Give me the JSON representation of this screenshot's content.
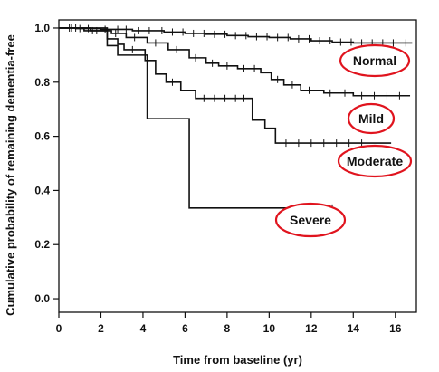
{
  "chart_data": {
    "type": "line",
    "title": "",
    "xlabel": "Time from baseline (yr)",
    "ylabel": "Cumulative probability of remaining dementia-free",
    "xlim": [
      0,
      17
    ],
    "ylim": [
      -0.05,
      1.03
    ],
    "xticks": [
      0,
      2,
      4,
      6,
      8,
      10,
      12,
      14,
      16
    ],
    "yticks": [
      0.0,
      0.2,
      0.4,
      0.6,
      0.8,
      1.0
    ],
    "ytick_labels": [
      "0.0",
      "0.2",
      "0.4",
      "0.6",
      "0.8",
      "1.0"
    ],
    "grid": false,
    "legend": "none",
    "series": [
      {
        "name": "Normal",
        "step_points": [
          [
            0,
            1.0
          ],
          [
            0.8,
            0.998
          ],
          [
            2,
            0.995
          ],
          [
            3.5,
            0.99
          ],
          [
            5,
            0.985
          ],
          [
            6,
            0.98
          ],
          [
            7,
            0.977
          ],
          [
            8,
            0.972
          ],
          [
            9,
            0.968
          ],
          [
            10,
            0.965
          ],
          [
            11,
            0.96
          ],
          [
            12,
            0.953
          ],
          [
            13,
            0.948
          ],
          [
            14,
            0.945
          ],
          [
            16.8,
            0.945
          ]
        ],
        "censor_x": [
          0.5,
          1,
          1.4,
          2.2,
          2.8,
          3.2,
          3.8,
          4.3,
          4.9,
          5.4,
          5.9,
          6.4,
          6.9,
          7.4,
          7.9,
          8.4,
          8.9,
          9.4,
          9.9,
          10.4,
          10.9,
          11.4,
          11.9,
          12.4,
          12.9,
          13.4,
          13.9,
          14.4,
          14.9,
          15.4,
          15.9,
          16.5
        ]
      },
      {
        "name": "Mild",
        "step_points": [
          [
            0,
            1.0
          ],
          [
            1.5,
            0.99
          ],
          [
            2.5,
            0.98
          ],
          [
            3.2,
            0.965
          ],
          [
            4.2,
            0.945
          ],
          [
            5.2,
            0.92
          ],
          [
            6.2,
            0.89
          ],
          [
            7,
            0.87
          ],
          [
            7.6,
            0.86
          ],
          [
            8.5,
            0.85
          ],
          [
            9.6,
            0.835
          ],
          [
            10.1,
            0.81
          ],
          [
            10.7,
            0.79
          ],
          [
            11.5,
            0.77
          ],
          [
            12.6,
            0.76
          ],
          [
            14,
            0.75
          ],
          [
            16.7,
            0.75
          ]
        ],
        "censor_x": [
          0.8,
          1.8,
          2.7,
          3.6,
          4.6,
          5.6,
          6.5,
          7.3,
          8,
          8.8,
          9.3,
          10.4,
          11.1,
          11.9,
          12.9,
          13.6,
          14.4,
          15,
          15.6,
          16.2
        ]
      },
      {
        "name": "Moderate",
        "step_points": [
          [
            0,
            1.0
          ],
          [
            1.2,
            0.99
          ],
          [
            2.3,
            0.96
          ],
          [
            2.8,
            0.94
          ],
          [
            3.1,
            0.92
          ],
          [
            4.1,
            0.88
          ],
          [
            4.6,
            0.83
          ],
          [
            5.1,
            0.8
          ],
          [
            5.8,
            0.77
          ],
          [
            6.5,
            0.74
          ],
          [
            9.2,
            0.66
          ],
          [
            9.8,
            0.63
          ],
          [
            10.3,
            0.575
          ],
          [
            15.8,
            0.575
          ]
        ],
        "censor_x": [
          0.6,
          1.6,
          3.5,
          5.4,
          6.9,
          7.4,
          7.9,
          8.4,
          8.8,
          10.8,
          11.4,
          12,
          12.6,
          13.2,
          13.8,
          14.4
        ]
      },
      {
        "name": "Severe",
        "step_points": [
          [
            0,
            1.0
          ],
          [
            2.3,
            0.935
          ],
          [
            2.8,
            0.9
          ],
          [
            4.2,
            0.895
          ],
          [
            4.2,
            0.665
          ],
          [
            6.2,
            0.665
          ],
          [
            6.2,
            0.335
          ],
          [
            13,
            0.335
          ]
        ],
        "censor_x": [
          12.3,
          13
        ]
      }
    ],
    "annotations": [
      "Normal",
      "Mild",
      "Moderate",
      "Severe"
    ]
  }
}
